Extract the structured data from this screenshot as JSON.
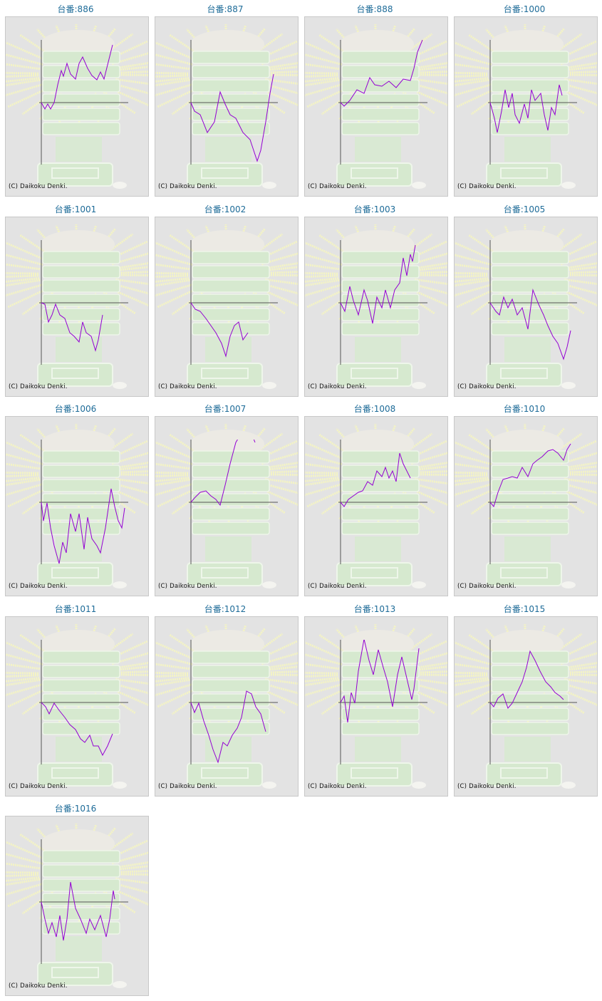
{
  "copyright": "(C) Daikoku Denki.",
  "colors": {
    "line": "#9400d3",
    "axis": "#555555",
    "title": "#1d6b98",
    "panel": "#e3e3e3"
  },
  "chart_data": [
    {
      "type": "line",
      "title": "台番:886",
      "x": [
        0,
        250,
        450,
        650,
        900,
        1150,
        1400,
        1550,
        1800,
        2050,
        2400,
        2650,
        2900,
        3250,
        3550,
        3900,
        4150,
        4400,
        4650,
        5000
      ],
      "y": [
        0,
        -270,
        -60,
        -270,
        0,
        750,
        1350,
        1110,
        1650,
        1200,
        990,
        1650,
        1920,
        1440,
        1140,
        960,
        1290,
        990,
        1590,
        2430
      ]
    },
    {
      "type": "line",
      "title": "台番:887",
      "x": [
        0,
        250,
        650,
        1150,
        1650,
        2050,
        2400,
        2750,
        3150,
        3650,
        4150,
        4650,
        4900,
        5250,
        5550,
        5800
      ],
      "y": [
        0,
        -360,
        -510,
        -1260,
        -810,
        450,
        -60,
        -510,
        -660,
        -1260,
        -1560,
        -2460,
        -2010,
        -810,
        390,
        1200
      ]
    },
    {
      "type": "line",
      "title": "台番:888",
      "x": [
        0,
        250,
        650,
        1150,
        1650,
        2050,
        2400,
        2900,
        3400,
        3900,
        4400,
        4900,
        5150,
        5400,
        5750
      ],
      "y": [
        0,
        -150,
        90,
        540,
        390,
        1050,
        750,
        690,
        900,
        630,
        990,
        930,
        1440,
        2130,
        2640
      ]
    },
    {
      "type": "line",
      "title": "台番:1000",
      "x": [
        0,
        300,
        500,
        800,
        1050,
        1300,
        1550,
        1750,
        2050,
        2400,
        2650,
        2900,
        3150,
        3550,
        3800,
        4050,
        4300,
        4550,
        4850,
        5050
      ],
      "y": [
        0,
        -660,
        -1260,
        -360,
        540,
        -210,
        390,
        -510,
        -870,
        -60,
        -660,
        540,
        90,
        390,
        -510,
        -1170,
        -210,
        -510,
        750,
        300
      ]
    },
    {
      "type": "line",
      "title": "台番:1001",
      "x": [
        0,
        250,
        500,
        750,
        1000,
        1300,
        1650,
        2000,
        2300,
        2650,
        2900,
        3150,
        3500,
        3800,
        4000,
        4300
      ],
      "y": [
        0,
        -60,
        -810,
        -510,
        -60,
        -510,
        -660,
        -1260,
        -1410,
        -1650,
        -810,
        -1260,
        -1410,
        -2010,
        -1560,
        -510
      ]
    },
    {
      "type": "line",
      "title": "台番:1002",
      "x": [
        0,
        300,
        650,
        1050,
        1400,
        1750,
        2150,
        2450,
        2750,
        3050,
        3350,
        3650,
        4000
      ],
      "y": [
        0,
        -270,
        -360,
        -660,
        -960,
        -1260,
        -1710,
        -2250,
        -1410,
        -960,
        -810,
        -1560,
        -1260
      ]
    },
    {
      "type": "line",
      "title": "台番:1003",
      "x": [
        0,
        300,
        650,
        900,
        1250,
        1650,
        1900,
        2250,
        2550,
        2900,
        3150,
        3500,
        3800,
        4150,
        4400,
        4650,
        4900,
        5050,
        5250
      ],
      "y": [
        0,
        -360,
        690,
        90,
        -510,
        540,
        90,
        -870,
        240,
        -210,
        540,
        -210,
        540,
        840,
        1890,
        1140,
        2040,
        1740,
        2430
      ]
    },
    {
      "type": "line",
      "title": "台番:1005",
      "x": [
        0,
        400,
        650,
        950,
        1250,
        1550,
        1900,
        2250,
        2650,
        3000,
        3400,
        3750,
        4050,
        4400,
        4750,
        5150,
        5400,
        5650
      ],
      "y": [
        0,
        -360,
        -510,
        240,
        -210,
        150,
        -510,
        -210,
        -1110,
        540,
        -60,
        -510,
        -960,
        -1410,
        -1710,
        -2370,
        -1860,
        -1170
      ]
    },
    {
      "type": "line",
      "title": "台番:1006",
      "x": [
        0,
        150,
        400,
        650,
        900,
        1250,
        1500,
        1750,
        2050,
        2400,
        2650,
        3000,
        3250,
        3550,
        3900,
        4150,
        4500,
        4900,
        5150,
        5400,
        5650,
        5850
      ],
      "y": [
        0,
        -780,
        -30,
        -1080,
        -1830,
        -2580,
        -1680,
        -2130,
        -480,
        -1230,
        -480,
        -1980,
        -630,
        -1530,
        -1830,
        -2130,
        -1080,
        570,
        -180,
        -780,
        -1080,
        -240
      ]
    },
    {
      "type": "line",
      "title": "台番:1007",
      "x": [
        0,
        250,
        650,
        1050,
        1400,
        1750,
        2050,
        2400,
        2750,
        3150,
        3300,
        3750,
        4400,
        4500
      ],
      "y": [
        0,
        180,
        420,
        480,
        270,
        120,
        -120,
        720,
        1620,
        2520,
        2670,
        3900,
        2670,
        2520
      ]
    },
    {
      "type": "line",
      "title": "台番:1008",
      "x": [
        0,
        250,
        550,
        900,
        1250,
        1550,
        1900,
        2250,
        2550,
        2900,
        3150,
        3400,
        3650,
        3900,
        4150,
        4400,
        4650,
        4900
      ],
      "y": [
        0,
        -180,
        120,
        270,
        420,
        480,
        870,
        720,
        1320,
        1080,
        1470,
        1020,
        1320,
        870,
        2070,
        1620,
        1320,
        1020
      ]
    },
    {
      "type": "line",
      "title": "台番:1010",
      "x": [
        0,
        250,
        550,
        900,
        1250,
        1550,
        1900,
        2250,
        2650,
        3000,
        3300,
        3650,
        4050,
        4400,
        4750,
        5150,
        5400,
        5650
      ],
      "y": [
        0,
        -180,
        420,
        960,
        1020,
        1080,
        1020,
        1470,
        1080,
        1620,
        1770,
        1920,
        2160,
        2220,
        2070,
        1770,
        2220,
        2460
      ]
    },
    {
      "type": "line",
      "title": "台番:1011",
      "x": [
        0,
        300,
        550,
        900,
        1250,
        1650,
        2000,
        2400,
        2750,
        3050,
        3400,
        3650,
        4000,
        4300,
        4650,
        5000
      ],
      "y": [
        0,
        -180,
        -480,
        -30,
        -330,
        -630,
        -930,
        -1140,
        -1530,
        -1680,
        -1380,
        -1830,
        -1830,
        -2220,
        -1830,
        -1320
      ]
    },
    {
      "type": "line",
      "title": "台番:1012",
      "x": [
        0,
        250,
        550,
        900,
        1250,
        1550,
        1900,
        2250,
        2550,
        2900,
        3250,
        3550,
        3900,
        4250,
        4550,
        4900,
        5250
      ],
      "y": [
        0,
        -420,
        -30,
        -780,
        -1380,
        -1980,
        -2520,
        -1680,
        -1830,
        -1380,
        -1080,
        -630,
        480,
        360,
        -180,
        -480,
        -1230
      ]
    },
    {
      "type": "line",
      "title": "台番:1013",
      "x": [
        0,
        250,
        500,
        750,
        1000,
        1250,
        1650,
        2000,
        2300,
        2650,
        3000,
        3300,
        3650,
        4000,
        4300,
        4650,
        5000,
        5150,
        5500
      ],
      "y": [
        0,
        270,
        -840,
        420,
        -30,
        1320,
        2670,
        1770,
        1170,
        2220,
        1470,
        870,
        -180,
        1170,
        1920,
        1020,
        120,
        570,
        2280
      ]
    },
    {
      "type": "line",
      "title": "台番:1015",
      "x": [
        0,
        250,
        550,
        900,
        1250,
        1550,
        1900,
        2250,
        2550,
        2800,
        3150,
        3500,
        3900,
        4250,
        4550,
        4900,
        5150
      ],
      "y": [
        0,
        -180,
        180,
        360,
        -240,
        -30,
        420,
        870,
        1470,
        2160,
        1770,
        1320,
        870,
        660,
        420,
        270,
        120
      ]
    },
    {
      "type": "line",
      "title": "台番:1016",
      "x": [
        0,
        250,
        500,
        750,
        1050,
        1300,
        1550,
        1800,
        2050,
        2400,
        2750,
        3150,
        3400,
        3750,
        4150,
        4550,
        4800,
        5050,
        5150
      ],
      "y": [
        0,
        -720,
        -1320,
        -870,
        -1470,
        -570,
        -1620,
        -720,
        840,
        -270,
        -720,
        -1320,
        -720,
        -1170,
        -570,
        -1470,
        -720,
        480,
        120
      ]
    }
  ],
  "axes": {
    "xlim": [
      0,
      6000
    ],
    "ylim": [
      -2610,
      2640
    ]
  }
}
